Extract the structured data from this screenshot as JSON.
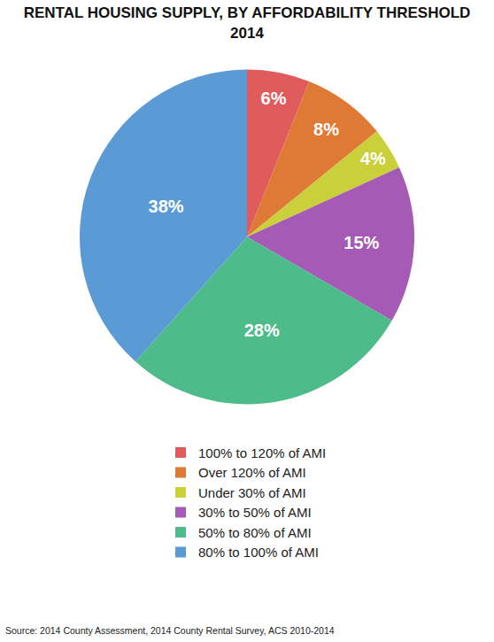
{
  "chart_data": {
    "type": "pie",
    "title": "RENTAL HOUSING SUPPLY, BY AFFORDABILITY THRESHOLD",
    "subtitle": "2014",
    "categories": [
      "100% to 120% of AMI",
      "Over 120% of AMI",
      "Under 30% of AMI",
      "30% to 50% of AMI",
      "50% to 80% of AMI",
      "80% to 100% of AMI"
    ],
    "values": [
      6,
      8,
      4,
      15,
      28,
      38
    ],
    "value_labels": [
      "6%",
      "8%",
      "4%",
      "15%",
      "28%",
      "38%"
    ],
    "colors": [
      "#e05c5c",
      "#de7a36",
      "#c9d03a",
      "#a55ab5",
      "#4dbb8a",
      "#5b9bd5"
    ],
    "data_labels": true,
    "legend": "bottom",
    "source": "Source: 2014 County Assessment, 2014 County Rental Survey, ACS 2010-2014"
  }
}
